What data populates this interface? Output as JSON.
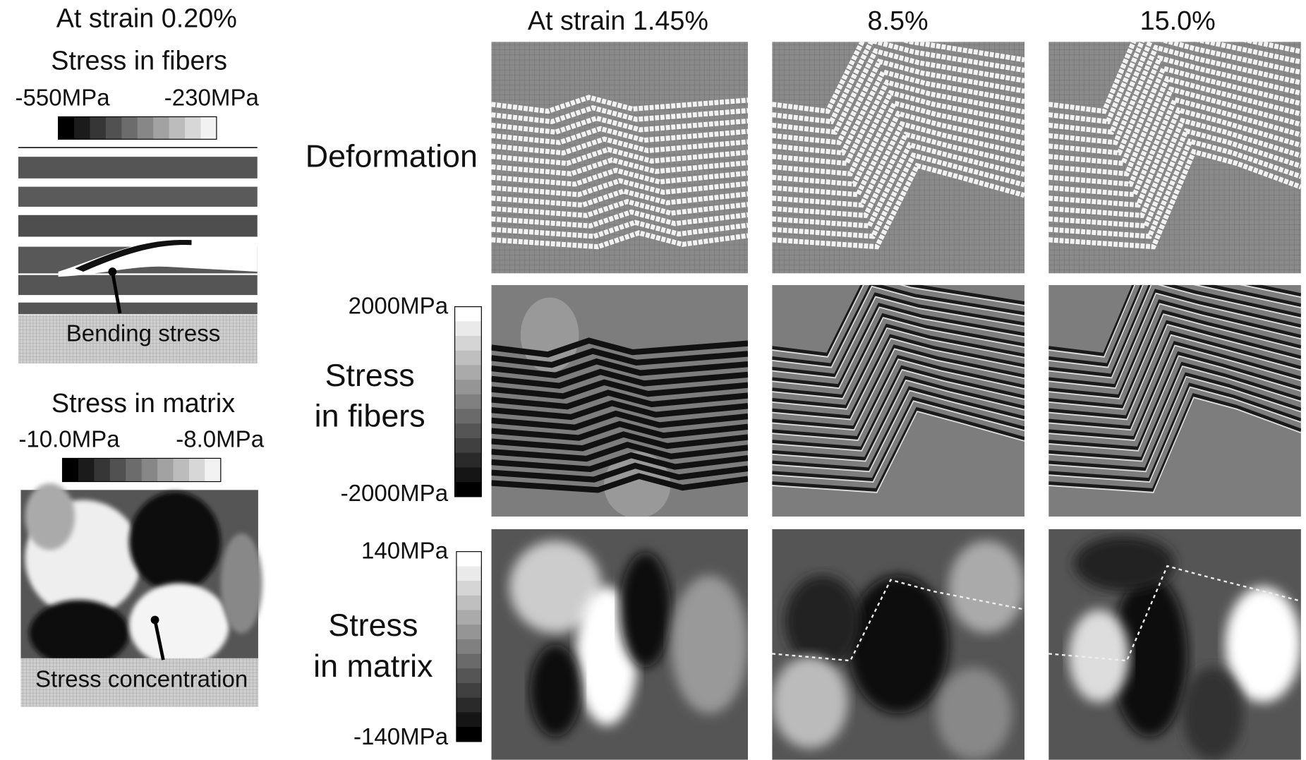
{
  "left": {
    "title": "At strain 0.20%",
    "fibers": {
      "title": "Stress in fibers",
      "min_label": "-550MPa",
      "max_label": "-230MPa",
      "annotation": "Bending stress"
    },
    "matrix": {
      "title": "Stress in matrix",
      "min_label": "-10.0MPa",
      "max_label": "-8.0MPa",
      "annotation": "Stress concentration"
    }
  },
  "columns": [
    "At strain 1.45%",
    "8.5%",
    "15.0%"
  ],
  "rows": [
    {
      "label_lines": [
        "Deformation"
      ]
    },
    {
      "label_lines": [
        "Stress",
        "in fibers"
      ],
      "max_label": "2000MPa",
      "min_label": "-2000MPa"
    },
    {
      "label_lines": [
        "Stress",
        "in matrix"
      ],
      "max_label": "140MPa",
      "min_label": "-140MPa"
    }
  ]
}
